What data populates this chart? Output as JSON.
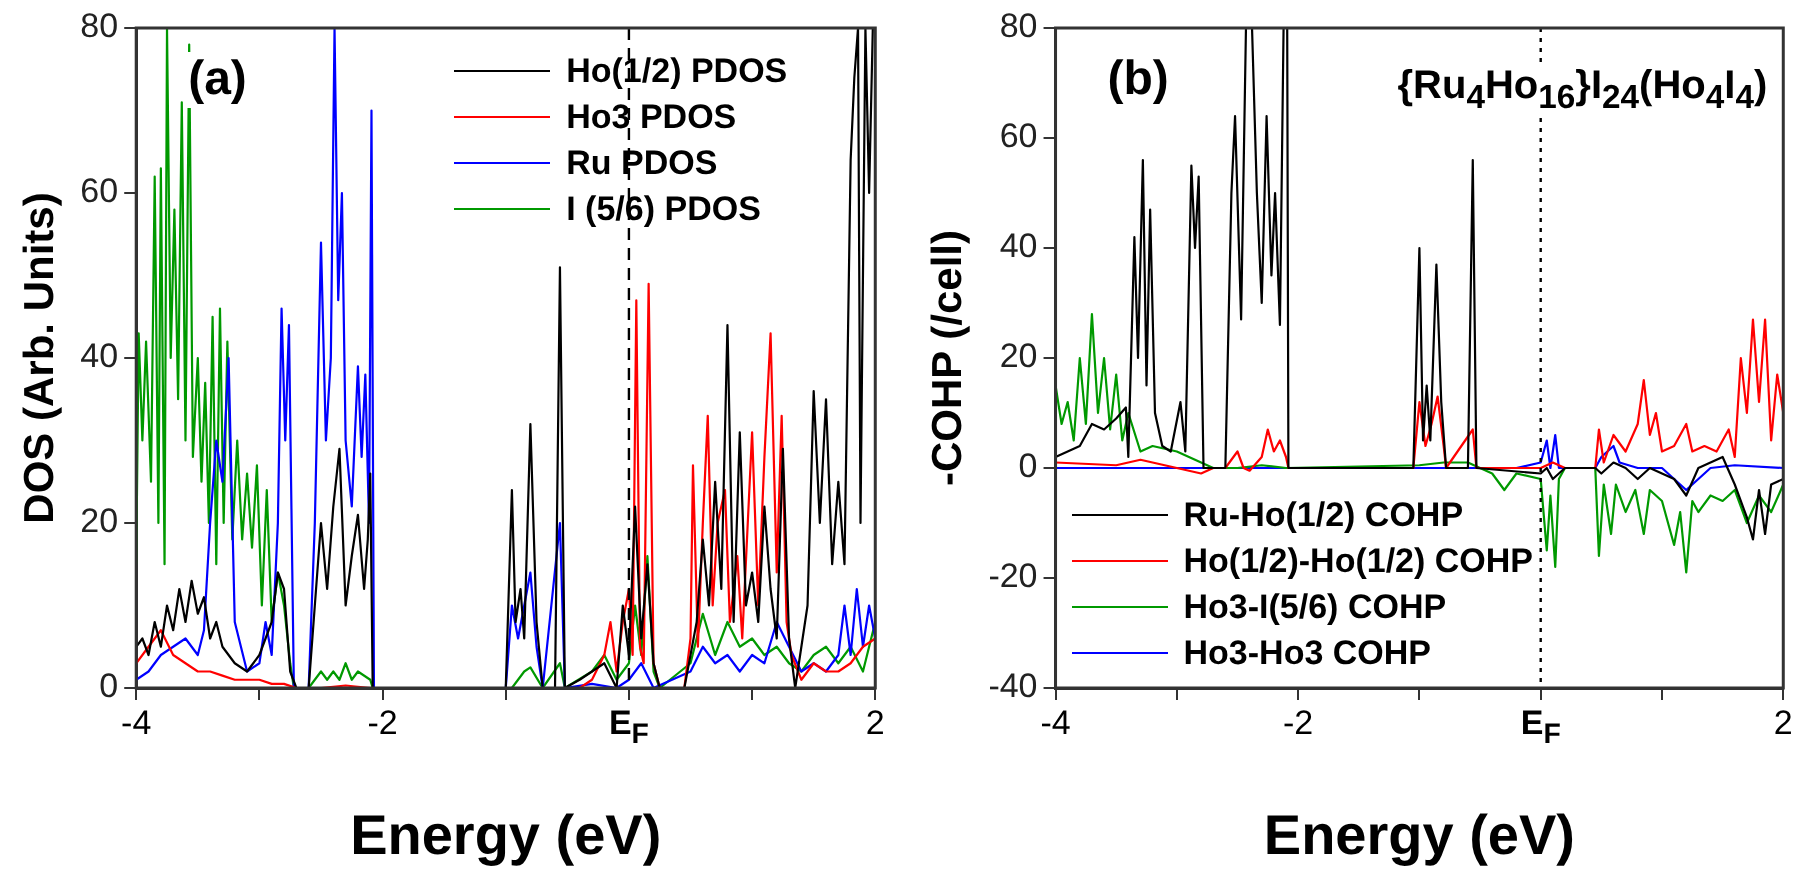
{
  "chart_data": [
    {
      "type": "line",
      "xlabel": "Energy (eV)",
      "ylabel": "DOS (Arb. Units)",
      "annotations": [
        "(a)"
      ],
      "xlim": [
        -4,
        2
      ],
      "xticks": [
        -4,
        {
          "value": -3,
          "label": null
        },
        -2,
        {
          "value": -1,
          "label": null
        },
        {
          "value": 0,
          "label": "E$_{F}$"
        },
        {
          "value": 1,
          "label": null
        },
        2
      ],
      "ylim": [
        0,
        80
      ],
      "yticks": [
        0,
        20,
        40,
        60,
        80
      ],
      "grid": false,
      "legend": "top right",
      "marker": "none",
      "line_style": "solid",
      "ref_lines": [
        {
          "axis": "x",
          "value": 0,
          "line_style": "dashed",
          "color": "#000000"
        }
      ],
      "series": [
        {
          "name": "Ho(1/2) PDOS",
          "color": "#000000",
          "x": [
            -4,
            -3.95,
            -3.9,
            -3.85,
            -3.8,
            -3.75,
            -3.7,
            -3.65,
            -3.6,
            -3.55,
            -3.5,
            -3.45,
            -3.4,
            -3.35,
            -3.3,
            -3.2,
            -3.1,
            -3.0,
            -2.9,
            -2.85,
            -2.8,
            -2.75,
            -2.7,
            -2.6,
            -2.55,
            -2.5,
            -2.45,
            -2.4,
            -2.35,
            -2.3,
            -2.25,
            -2.2,
            -2.15,
            -2.12,
            -2.1,
            -2.08,
            -1.0,
            -0.95,
            -0.92,
            -0.88,
            -0.85,
            -0.8,
            -0.75,
            -0.7,
            -0.6,
            -0.56,
            -0.52,
            -0.4,
            -0.2,
            -0.1,
            -0.05,
            0,
            0.05,
            0.1,
            0.15,
            0.2,
            0.25,
            0.45,
            0.5,
            0.55,
            0.6,
            0.65,
            0.7,
            0.75,
            0.8,
            0.85,
            0.9,
            0.95,
            1.0,
            1.05,
            1.1,
            1.15,
            1.2,
            1.25,
            1.3,
            1.35,
            1.45,
            1.5,
            1.55,
            1.6,
            1.65,
            1.7,
            1.75,
            1.8,
            1.83,
            1.86,
            1.88,
            1.92,
            1.95,
            1.98,
            2.0
          ],
          "values": [
            5,
            6,
            4,
            8,
            5,
            10,
            7,
            12,
            8,
            13,
            9,
            11,
            6,
            8,
            5,
            3,
            2,
            4,
            8,
            14,
            12,
            2,
            0,
            0,
            10,
            20,
            12,
            22,
            29,
            10,
            16,
            21,
            12,
            18,
            26,
            0,
            0,
            24,
            8,
            12,
            6,
            32,
            8,
            0,
            0,
            51,
            0,
            1,
            3,
            0,
            10,
            4,
            22,
            6,
            15,
            3,
            0,
            0,
            4,
            8,
            18,
            10,
            25,
            12,
            44,
            8,
            31,
            10,
            14,
            8,
            22,
            12,
            6,
            29,
            6,
            0,
            10,
            36,
            20,
            35,
            15,
            25,
            15,
            64,
            74,
            80,
            20,
            80,
            60,
            80,
            80
          ]
        },
        {
          "name": "Ho3 PDOS",
          "color": "#ff0000",
          "x": [
            -4,
            -3.9,
            -3.8,
            -3.7,
            -3.6,
            -3.5,
            -3.4,
            -3.3,
            -3.2,
            -3.0,
            -2.9,
            -2.8,
            -2.7,
            -2.5,
            -2.3,
            -2.1,
            -0.4,
            -0.3,
            -0.2,
            -0.15,
            -0.1,
            -0.05,
            0,
            0.03,
            0.06,
            0.09,
            0.12,
            0.16,
            0.2,
            0.25,
            0.45,
            0.5,
            0.52,
            0.56,
            0.6,
            0.64,
            0.68,
            0.72,
            0.78,
            0.82,
            0.88,
            0.92,
            1.0,
            1.05,
            1.1,
            1.15,
            1.2,
            1.24,
            1.28,
            1.32,
            1.4,
            1.5,
            1.6,
            1.7,
            1.8,
            1.9,
            2.0
          ],
          "values": [
            3,
            5,
            7,
            4,
            3,
            2,
            2,
            1.5,
            1,
            1,
            0.5,
            0.5,
            0,
            0,
            0.3,
            0,
            0,
            1,
            4,
            8,
            2,
            8,
            12,
            4,
            47,
            5,
            3,
            49,
            3,
            0,
            0,
            6,
            27,
            5,
            20,
            33,
            10,
            20,
            24,
            8,
            16,
            6,
            31,
            10,
            28,
            43,
            14,
            33,
            8,
            4,
            1,
            3,
            2,
            2,
            3,
            5,
            6
          ]
        },
        {
          "name": "Ru PDOS",
          "color": "#0000ff",
          "x": [
            -4,
            -3.9,
            -3.8,
            -3.7,
            -3.6,
            -3.5,
            -3.45,
            -3.4,
            -3.35,
            -3.3,
            -3.25,
            -3.2,
            -3.1,
            -3.0,
            -2.95,
            -2.9,
            -2.85,
            -2.82,
            -2.79,
            -2.76,
            -2.72,
            -2.6,
            -2.55,
            -2.5,
            -2.46,
            -2.42,
            -2.39,
            -2.36,
            -2.33,
            -2.3,
            -2.25,
            -2.2,
            -2.17,
            -2.14,
            -2.11,
            -2.09,
            -2.07,
            -1.0,
            -0.95,
            -0.9,
            -0.85,
            -0.8,
            -0.75,
            -0.7,
            -0.56,
            -0.52,
            -0.3,
            -0.1,
            0,
            0.1,
            0.2,
            0.5,
            0.6,
            0.7,
            0.8,
            0.9,
            1.0,
            1.1,
            1.2,
            1.3,
            1.4,
            1.5,
            1.6,
            1.7,
            1.75,
            1.8,
            1.85,
            1.9,
            1.95,
            2.0
          ],
          "values": [
            1,
            2,
            4,
            5,
            6,
            4,
            7,
            20,
            30,
            25,
            40,
            8,
            2,
            3,
            8,
            4,
            20,
            46,
            30,
            44,
            0,
            0,
            20,
            54,
            30,
            40,
            80,
            47,
            60,
            30,
            22,
            39,
            28,
            38,
            20,
            70,
            0,
            0,
            10,
            6,
            10,
            14,
            5,
            0,
            20,
            0,
            0.5,
            0,
            1,
            3,
            0,
            2,
            5,
            3,
            4,
            2,
            4,
            3,
            8,
            5,
            2,
            3,
            2,
            4,
            10,
            4,
            12,
            5,
            10,
            6
          ]
        },
        {
          "name": "I (5/6) PDOS",
          "color": "#009900",
          "x": [
            -4,
            -3.98,
            -3.95,
            -3.92,
            -3.88,
            -3.85,
            -3.82,
            -3.8,
            -3.77,
            -3.75,
            -3.72,
            -3.69,
            -3.66,
            -3.63,
            -3.6,
            -3.57,
            -3.54,
            -3.5,
            -3.47,
            -3.44,
            -3.41,
            -3.38,
            -3.35,
            -3.32,
            -3.29,
            -3.26,
            -3.22,
            -3.18,
            -3.14,
            -3.1,
            -3.06,
            -3.02,
            -2.98,
            -2.94,
            -2.9,
            -2.85,
            -2.8,
            -2.75,
            -2.72,
            -2.6,
            -2.5,
            -2.45,
            -2.4,
            -2.35,
            -2.3,
            -2.25,
            -2.2,
            -2.1,
            -2.08,
            -0.95,
            -0.85,
            -0.8,
            -0.7,
            -0.56,
            -0.52,
            -0.3,
            -0.2,
            -0.1,
            0,
            0.05,
            0.1,
            0.15,
            0.2,
            0.25,
            0.5,
            0.55,
            0.6,
            0.7,
            0.8,
            0.9,
            1.0,
            1.1,
            1.2,
            1.3,
            1.4,
            1.5,
            1.6,
            1.7,
            1.8,
            1.9,
            2.0
          ],
          "values": [
            15,
            43,
            30,
            42,
            25,
            62,
            20,
            63,
            15,
            80,
            40,
            58,
            35,
            71,
            30,
            78,
            28,
            40,
            25,
            37,
            20,
            45,
            15,
            46,
            20,
            42,
            18,
            30,
            18,
            26,
            17,
            27,
            10,
            24,
            8,
            14,
            10,
            3,
            0,
            0,
            2,
            1,
            2,
            1,
            3,
            1,
            2,
            1,
            0,
            0,
            2,
            2.5,
            0,
            3,
            0,
            2,
            4,
            1,
            3,
            10,
            4,
            16,
            2,
            0,
            3,
            6,
            9,
            4,
            8,
            5,
            6,
            4,
            5,
            3,
            2,
            4,
            5,
            3,
            5,
            2,
            8
          ]
        }
      ]
    },
    {
      "type": "line",
      "xlabel": "Energy (eV)",
      "ylabel": "-COHP (/cell)",
      "annotations": [
        "(b)",
        "{Ru$_{4}$Ho$_{16}$}I$_{24}$(Ho$_{4}$I$_{4}$)"
      ],
      "xlim": [
        -4,
        2
      ],
      "xticks": [
        -4,
        {
          "value": -3,
          "label": null
        },
        -2,
        {
          "value": -1,
          "label": null
        },
        {
          "value": 0,
          "label": "E$_{F}$"
        },
        {
          "value": 1,
          "label": null
        },
        2
      ],
      "ylim": [
        -40,
        80
      ],
      "yticks": [
        -40,
        -20,
        0,
        20,
        40,
        60,
        80
      ],
      "grid": false,
      "legend": "bottom left",
      "marker": "none",
      "line_style": "solid",
      "ref_lines": [
        {
          "axis": "x",
          "value": 0,
          "line_style": "dotted",
          "color": "#000000"
        }
      ],
      "series": [
        {
          "name": "Ru-Ho(1/2) COHP",
          "color": "#000000",
          "x": [
            -4,
            -3.9,
            -3.8,
            -3.7,
            -3.6,
            -3.5,
            -3.42,
            -3.4,
            -3.35,
            -3.32,
            -3.28,
            -3.25,
            -3.22,
            -3.18,
            -3.12,
            -3.05,
            -2.97,
            -2.93,
            -2.88,
            -2.85,
            -2.82,
            -2.78,
            -2.6,
            -2.55,
            -2.52,
            -2.47,
            -2.43,
            -2.38,
            -2.34,
            -2.3,
            -2.26,
            -2.22,
            -2.19,
            -2.15,
            -2.12,
            -2.09,
            -2.08,
            -1.05,
            -1.0,
            -0.97,
            -0.94,
            -0.91,
            -0.86,
            -0.82,
            -0.78,
            -0.6,
            -0.56,
            -0.53,
            0,
            0.05,
            0.1,
            0.2,
            0.45,
            0.5,
            0.6,
            0.7,
            0.8,
            0.9,
            1.0,
            1.1,
            1.2,
            1.3,
            1.4,
            1.5,
            1.6,
            1.7,
            1.75,
            1.8,
            1.85,
            1.9,
            2.0
          ],
          "values": [
            2,
            3,
            4,
            8,
            7,
            9,
            11,
            2,
            42,
            20,
            56,
            15,
            47,
            10,
            4,
            3,
            12,
            3,
            55,
            40,
            53,
            0,
            0,
            50,
            64,
            27,
            80,
            80,
            50,
            30,
            64,
            35,
            50,
            26,
            80,
            80,
            0,
            0,
            40,
            5,
            15,
            5,
            37,
            12,
            0,
            0,
            56,
            0,
            -1,
            0,
            -2,
            0,
            0,
            -1,
            1,
            0,
            -2,
            0,
            -1,
            -2,
            -5,
            0,
            1,
            2,
            -3,
            -9,
            -13,
            -4,
            -12,
            -3,
            -2
          ]
        },
        {
          "name": "Ho(1/2)-Ho(1/2) COHP",
          "color": "#ff0000",
          "x": [
            -4,
            -3.5,
            -3.3,
            -3.0,
            -2.8,
            -2.7,
            -2.6,
            -2.5,
            -2.45,
            -2.4,
            -2.3,
            -2.25,
            -2.2,
            -2.15,
            -2.1,
            -2.08,
            -1.05,
            -1.0,
            -0.95,
            -0.9,
            -0.85,
            -0.8,
            -0.78,
            -0.56,
            -0.53,
            -0.3,
            0,
            0.1,
            0.2,
            0.45,
            0.48,
            0.52,
            0.6,
            0.7,
            0.8,
            0.85,
            0.9,
            0.95,
            1.0,
            1.1,
            1.2,
            1.25,
            1.35,
            1.45,
            1.55,
            1.6,
            1.65,
            1.7,
            1.75,
            1.8,
            1.85,
            1.9,
            1.95,
            2.0
          ],
          "values": [
            1,
            0.5,
            1.5,
            0,
            -1,
            0,
            0,
            3,
            0,
            -0.5,
            2,
            7,
            3,
            5,
            2,
            0,
            0,
            12,
            4,
            8,
            13,
            4,
            0,
            7,
            0,
            0,
            0,
            1,
            0,
            0,
            7,
            1,
            6,
            3,
            8,
            16,
            6,
            10,
            3,
            4,
            8,
            3,
            4,
            3,
            7,
            2,
            20,
            10,
            27,
            12,
            27,
            5,
            17,
            10
          ]
        },
        {
          "name": "Ho3-I(5/6) COHP",
          "color": "#009900",
          "x": [
            -4,
            -3.95,
            -3.9,
            -3.85,
            -3.8,
            -3.75,
            -3.7,
            -3.65,
            -3.6,
            -3.55,
            -3.5,
            -3.45,
            -3.4,
            -3.3,
            -3.2,
            -3.0,
            -2.9,
            -2.8,
            -2.7,
            -2.5,
            -2.3,
            -2.1,
            -1.0,
            -0.8,
            -0.6,
            -0.4,
            -0.3,
            -0.2,
            0,
            0.05,
            0.08,
            0.12,
            0.15,
            0.2,
            0.45,
            0.48,
            0.52,
            0.58,
            0.62,
            0.7,
            0.78,
            0.85,
            0.9,
            1.0,
            1.1,
            1.15,
            1.2,
            1.25,
            1.3,
            1.4,
            1.5,
            1.6,
            1.7,
            1.8,
            1.9,
            2.0
          ],
          "values": [
            15,
            8,
            12,
            5,
            20,
            8,
            28,
            10,
            20,
            7,
            17,
            5,
            10,
            3,
            4,
            3,
            2,
            1,
            0,
            0,
            0.5,
            0,
            0.5,
            1,
            1,
            -1,
            -4,
            -1,
            -2,
            -15,
            -5,
            -18,
            -2,
            0,
            0,
            -16,
            -3,
            -12,
            -3,
            -8,
            -4,
            -12,
            -4,
            -6,
            -14,
            -8,
            -19,
            -6,
            -8,
            -5,
            -6,
            -4,
            -10,
            -5,
            -8,
            -3
          ]
        },
        {
          "name": "Ho3-Ho3 COHP",
          "color": "#0000ff",
          "x": [
            -4,
            -0.2,
            0,
            0.05,
            0.08,
            0.12,
            0.15,
            0.2,
            0.45,
            0.5,
            0.6,
            0.65,
            0.8,
            1.0,
            1.1,
            1.2,
            1.3,
            1.4,
            1.6,
            2.0
          ],
          "values": [
            0,
            0,
            1,
            5,
            0,
            6,
            0,
            0,
            0,
            2,
            4,
            1,
            0,
            0,
            -2,
            -4,
            -2,
            0,
            0.5,
            0
          ]
        }
      ]
    }
  ]
}
